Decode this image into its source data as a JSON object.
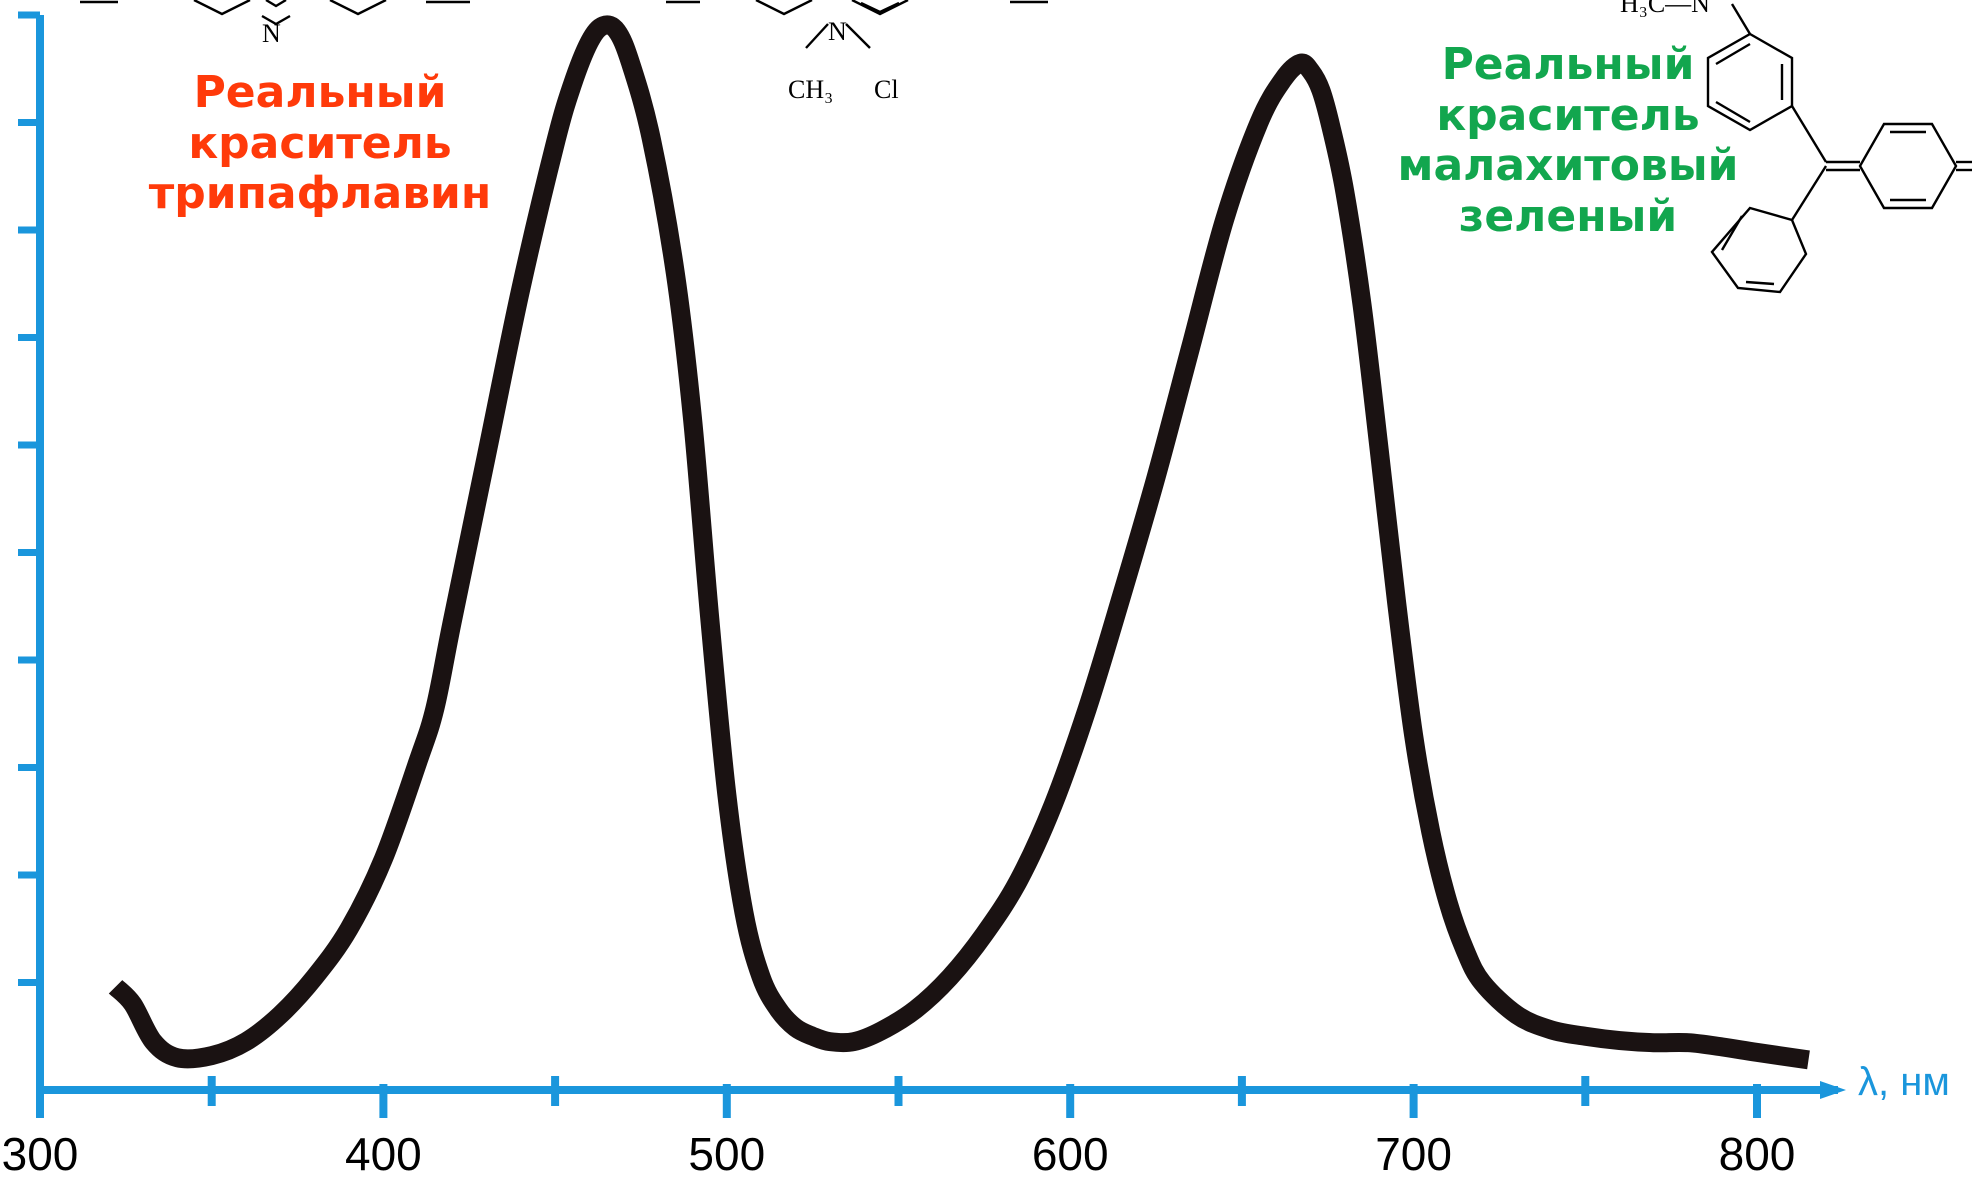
{
  "colors": {
    "axis": "#1a96dc",
    "curve": "#1a1212",
    "annotation_left": "#ff3a0a",
    "annotation_right": "#12a64e"
  },
  "annotations": {
    "left": {
      "line1": "Реальный",
      "line2": "краситель",
      "line3": "трипафлавин"
    },
    "right": {
      "line1": "Реальный",
      "line2": "краситель",
      "line3": "малахитовый",
      "line4": "зеленый"
    }
  },
  "structures": {
    "left_fragment": {
      "atom_n1": "N",
      "atom_n2": "N",
      "substituent_1": "CH₃",
      "substituent_2": "Cl"
    },
    "right_fragment": {
      "group": "H₃C—N"
    }
  },
  "chart_data": {
    "type": "line",
    "title": "",
    "xlabel": "λ, нм",
    "ylabel": "",
    "xlim": [
      300,
      815
    ],
    "ylim": [
      0,
      1.0
    ],
    "x_ticks": [
      300,
      400,
      500,
      600,
      700,
      800
    ],
    "x_minor_ticks": [
      350,
      450,
      550,
      650,
      750
    ],
    "y_tick_count": 10,
    "grid": false,
    "legend": "none",
    "series": [
      {
        "x": [
          322,
          327,
          333,
          340,
          350,
          360,
          370,
          380,
          390,
          400,
          410,
          415,
          420,
          430,
          440,
          450,
          455,
          460,
          464,
          468,
          472,
          478,
          485,
          490,
          495,
          500,
          505,
          510,
          515,
          520,
          525,
          530,
          537,
          545,
          555,
          565,
          575,
          585,
          595,
          605,
          615,
          625,
          635,
          645,
          655,
          662,
          667,
          670,
          673,
          676,
          680,
          685,
          690,
          695,
          700,
          705,
          710,
          715,
          720,
          730,
          740,
          750,
          760,
          770,
          780,
          790,
          800,
          815
        ],
        "y": [
          0.096,
          0.08,
          0.045,
          0.03,
          0.032,
          0.045,
          0.07,
          0.105,
          0.15,
          0.215,
          0.305,
          0.355,
          0.435,
          0.59,
          0.745,
          0.88,
          0.935,
          0.975,
          0.99,
          0.985,
          0.955,
          0.885,
          0.76,
          0.625,
          0.44,
          0.275,
          0.165,
          0.105,
          0.075,
          0.058,
          0.05,
          0.045,
          0.045,
          0.055,
          0.075,
          0.105,
          0.145,
          0.195,
          0.265,
          0.355,
          0.46,
          0.57,
          0.69,
          0.81,
          0.9,
          0.94,
          0.955,
          0.948,
          0.93,
          0.895,
          0.835,
          0.73,
          0.595,
          0.455,
          0.33,
          0.24,
          0.175,
          0.13,
          0.1,
          0.07,
          0.056,
          0.05,
          0.046,
          0.044,
          0.044,
          0.04,
          0.035,
          0.028
        ]
      }
    ]
  }
}
